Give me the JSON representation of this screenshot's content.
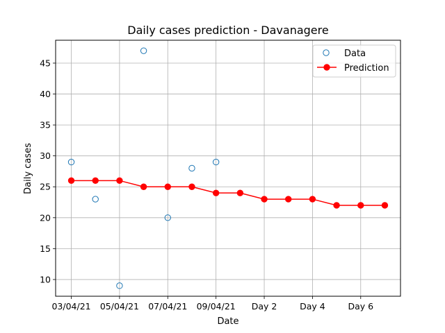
{
  "chart_data": {
    "type": "line",
    "title": "Daily cases prediction - Davanagere",
    "xlabel": "Date",
    "ylabel": "Daily cases",
    "x_tick_labels": [
      "03/04/21",
      "05/04/21",
      "07/04/21",
      "09/04/21",
      "Day 2",
      "Day 4",
      "Day 6"
    ],
    "x_ticks_at_index": [
      0,
      2,
      4,
      6,
      8,
      10,
      12
    ],
    "y_ticks": [
      10,
      15,
      20,
      25,
      30,
      35,
      40,
      45
    ],
    "ylim": [
      7.3,
      48.7
    ],
    "xlim": [
      -0.65,
      13.65
    ],
    "grid": true,
    "legend_position": "top-right",
    "series": [
      {
        "name": "Data",
        "style": "markers-hollow",
        "color": "#1f77b4",
        "x": [
          0,
          1,
          2,
          3,
          4,
          5,
          6
        ],
        "y": [
          29,
          23,
          9,
          47,
          20,
          28,
          29
        ]
      },
      {
        "name": "Prediction",
        "style": "line-markers",
        "color": "#ff0000",
        "x": [
          0,
          1,
          2,
          3,
          4,
          5,
          6,
          7,
          8,
          9,
          10,
          11,
          12,
          13
        ],
        "y": [
          26,
          26,
          26,
          25,
          25,
          25,
          24,
          24,
          23,
          23,
          23,
          22,
          22,
          22
        ]
      }
    ]
  }
}
